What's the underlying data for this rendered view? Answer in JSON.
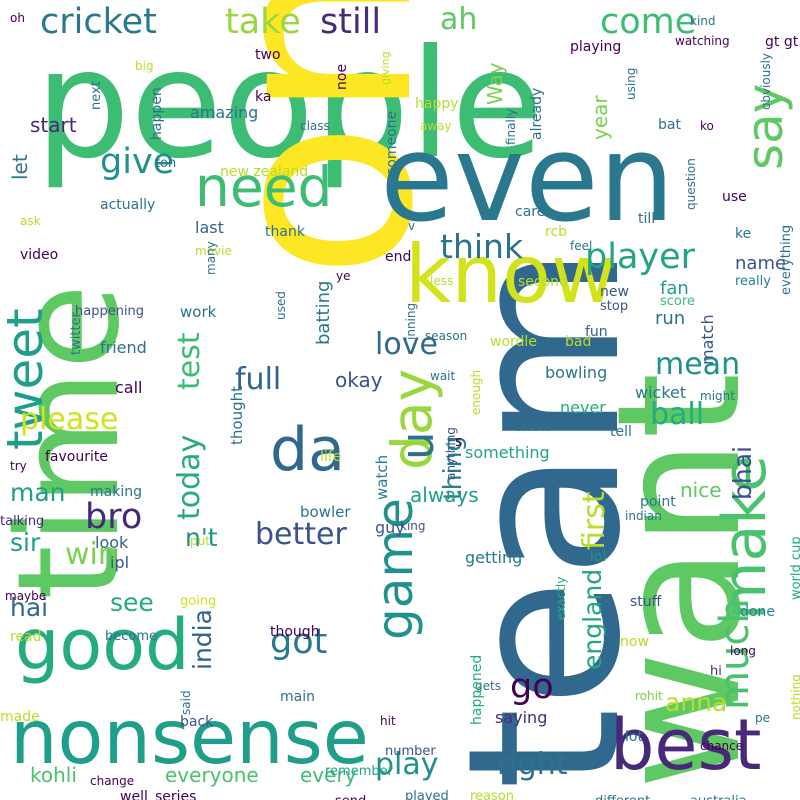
{
  "words": [
    {
      "text": "people",
      "color": "#3dbc74"
    },
    {
      "text": "one",
      "color": "#fde725"
    },
    {
      "text": "even",
      "color": "#2a788e"
    },
    {
      "text": "team",
      "color": "#31688e"
    },
    {
      "text": "want",
      "color": "#5ec962"
    },
    {
      "text": "time",
      "color": "#5ec962"
    },
    {
      "text": "know",
      "color": "#d2e21b"
    },
    {
      "text": "nonsense",
      "color": "#1f9e89"
    },
    {
      "text": "good",
      "color": "#25ab82"
    },
    {
      "text": "best",
      "color": "#482878"
    },
    {
      "text": "make",
      "color": "#4ac16d"
    },
    {
      "text": "day",
      "color": "#98d83e"
    },
    {
      "text": "need",
      "color": "#3dbc74"
    },
    {
      "text": "tweet",
      "color": "#1f9e89"
    },
    {
      "text": "game",
      "color": "#21918c"
    },
    {
      "text": "da",
      "color": "#31688e"
    },
    {
      "text": "say",
      "color": "#5ec962"
    },
    {
      "text": "much",
      "color": "#4ac16d"
    },
    {
      "text": "still",
      "color": "#472c7a"
    },
    {
      "text": "cricket",
      "color": "#2a788e"
    },
    {
      "text": "take",
      "color": "#98d83e"
    },
    {
      "text": "ah",
      "color": "#5ec962"
    },
    {
      "text": "come",
      "color": "#3dbc74"
    },
    {
      "text": "give",
      "color": "#21918c"
    },
    {
      "text": "think",
      "color": "#2c728e"
    },
    {
      "text": "player",
      "color": "#21a585"
    },
    {
      "text": "full",
      "color": "#33638d"
    },
    {
      "text": "please",
      "color": "#d2e21b"
    },
    {
      "text": "win",
      "color": "#7ad151"
    },
    {
      "text": "u",
      "color": "#2c728e"
    },
    {
      "text": "right",
      "color": "#2c728e"
    },
    {
      "text": "play",
      "color": "#21918c"
    },
    {
      "text": "today",
      "color": "#25ab82"
    },
    {
      "text": "test",
      "color": "#3dbc74"
    },
    {
      "text": "first",
      "color": "#b5de2b"
    },
    {
      "text": "got",
      "color": "#2a788e"
    },
    {
      "text": "better",
      "color": "#3b528b"
    },
    {
      "text": "bro",
      "color": "#482878"
    },
    {
      "text": "go",
      "color": "#440154"
    },
    {
      "text": "love",
      "color": "#31688e"
    },
    {
      "text": "mean",
      "color": "#21918c"
    },
    {
      "text": "ball",
      "color": "#25ab82"
    },
    {
      "text": "anna",
      "color": "#b5de2b"
    },
    {
      "text": "bhai",
      "color": "#3b528b"
    },
    {
      "text": "england",
      "color": "#21a585"
    },
    {
      "text": "india",
      "color": "#33638d"
    },
    {
      "text": "man",
      "color": "#1f9e89"
    },
    {
      "text": "sir",
      "color": "#1f9e89"
    },
    {
      "text": "see",
      "color": "#25ab82"
    },
    {
      "text": "n't",
      "color": "#20928c"
    },
    {
      "text": "thing",
      "color": "#277f8e"
    },
    {
      "text": "hai",
      "color": "#31688e"
    },
    {
      "text": "kohli",
      "color": "#4ac16d"
    },
    {
      "text": "everyone",
      "color": "#4ac16d"
    },
    {
      "text": "every",
      "color": "#3dbc74"
    },
    {
      "text": "always",
      "color": "#1f9e89"
    },
    {
      "text": "nice",
      "color": "#5ec962"
    },
    {
      "text": "okay",
      "color": "#3b528b"
    },
    {
      "text": "year",
      "color": "#7ad151"
    },
    {
      "text": "Way",
      "color": "#7ad151"
    },
    {
      "text": "start",
      "color": "#482878"
    },
    {
      "text": "let",
      "color": "#2a788e"
    },
    {
      "text": "amazing",
      "color": "#2c728e"
    },
    {
      "text": "match",
      "color": "#3b528b"
    },
    {
      "text": "batting",
      "color": "#2a788e"
    },
    {
      "text": "name",
      "color": "#3b528b"
    },
    {
      "text": "fan",
      "color": "#1f9e89"
    },
    {
      "text": "run",
      "color": "#2c728e"
    },
    {
      "text": "guy",
      "color": "#3b528b"
    },
    {
      "text": "last",
      "color": "#33638d"
    },
    {
      "text": "look",
      "color": "#33638d"
    },
    {
      "text": "ipl",
      "color": "#3b528b"
    },
    {
      "text": "saying",
      "color": "#472c7a"
    },
    {
      "text": "something",
      "color": "#21a585"
    },
    {
      "text": "never",
      "color": "#25ab82"
    },
    {
      "text": "bowling",
      "color": "#2a788e"
    },
    {
      "text": "wicket",
      "color": "#2a788e"
    },
    {
      "text": "getting",
      "color": "#2a788e"
    },
    {
      "text": "point",
      "color": "#2a788e"
    },
    {
      "text": "lol",
      "color": "#21918c"
    },
    {
      "text": "done",
      "color": "#26828e"
    },
    {
      "text": "stuff",
      "color": "#3b528b"
    },
    {
      "text": "world cup",
      "color": "#25ab82"
    },
    {
      "text": "everything",
      "color": "#2c728e"
    },
    {
      "text": "really",
      "color": "#26828e"
    },
    {
      "text": "new",
      "color": "#3b528b"
    },
    {
      "text": "fun",
      "color": "#33638d"
    },
    {
      "text": "stop",
      "color": "#3b528b"
    },
    {
      "text": "score",
      "color": "#3dbc74"
    },
    {
      "text": "call",
      "color": "#440154"
    },
    {
      "text": "friend",
      "color": "#2c728e"
    },
    {
      "text": "work",
      "color": "#2c728e"
    },
    {
      "text": "thought",
      "color": "#2c728e"
    },
    {
      "text": "watch",
      "color": "#277f8e"
    },
    {
      "text": "bowler",
      "color": "#2c728e"
    },
    {
      "text": "favourite",
      "color": "#440154"
    },
    {
      "text": "making",
      "color": "#2c728e"
    },
    {
      "text": "talking",
      "color": "#472c7a"
    },
    {
      "text": "read",
      "color": "#b5de2b"
    },
    {
      "text": "maybe",
      "color": "#440154"
    },
    {
      "text": "going",
      "color": "#d2e21b"
    },
    {
      "text": "become",
      "color": "#2c728e"
    },
    {
      "text": "made",
      "color": "#b5de2b"
    },
    {
      "text": "back",
      "color": "#3b528b"
    },
    {
      "text": "said",
      "color": "#2c728e"
    },
    {
      "text": "main",
      "color": "#2c728e"
    },
    {
      "text": "though",
      "color": "#440154"
    },
    {
      "text": "number",
      "color": "#3b528b"
    },
    {
      "text": "remember",
      "color": "#21a585"
    },
    {
      "text": "send",
      "color": "#440154"
    },
    {
      "text": "series",
      "color": "#440154"
    },
    {
      "text": "well",
      "color": "#440154"
    },
    {
      "text": "change",
      "color": "#440154"
    },
    {
      "text": "played",
      "color": "#2c728e"
    },
    {
      "text": "reason",
      "color": "#b5de2b"
    },
    {
      "text": "different",
      "color": "#2c728e"
    },
    {
      "text": "australia",
      "color": "#2c728e"
    },
    {
      "text": "nothing",
      "color": "#b5de2b"
    },
    {
      "text": "rohit",
      "color": "#7ad151"
    },
    {
      "text": "chance",
      "color": "#440154"
    },
    {
      "text": "lot",
      "color": "#2c728e"
    },
    {
      "text": "hi",
      "color": "#472c7a"
    },
    {
      "text": "long",
      "color": "#440154"
    },
    {
      "text": "now",
      "color": "#b5de2b"
    },
    {
      "text": "saw",
      "color": "#33638d"
    },
    {
      "text": "gets",
      "color": "#2c728e"
    },
    {
      "text": "happened",
      "color": "#25ab82"
    },
    {
      "text": "exactly",
      "color": "#25ab82"
    },
    {
      "text": "hit",
      "color": "#440154"
    },
    {
      "text": "pe",
      "color": "#2c728e"
    },
    {
      "text": "king",
      "color": "#3b528b"
    },
    {
      "text": "indian",
      "color": "#2c728e"
    },
    {
      "text": "put",
      "color": "#b5de2b"
    },
    {
      "text": "life",
      "color": "#b5de2b"
    },
    {
      "text": "try",
      "color": "#440154"
    },
    {
      "text": "anything",
      "color": "#3b528b"
    },
    {
      "text": "enough",
      "color": "#b5de2b"
    },
    {
      "text": "tell",
      "color": "#2c728e"
    },
    {
      "text": "might",
      "color": "#2c728e"
    },
    {
      "text": "show",
      "color": "#2c728e"
    },
    {
      "text": "s",
      "color": "#440154"
    },
    {
      "text": "wait",
      "color": "#2c728e"
    },
    {
      "text": "season",
      "color": "#2c728e"
    },
    {
      "text": "bad",
      "color": "#b5de2b"
    },
    {
      "text": "wordle",
      "color": "#b5de2b"
    },
    {
      "text": "inning",
      "color": "#2c728e"
    },
    {
      "text": "used",
      "color": "#2c728e"
    },
    {
      "text": "twitter",
      "color": "#2c728e"
    },
    {
      "text": "happening",
      "color": "#3b528b"
    },
    {
      "text": "ye",
      "color": "#440154"
    },
    {
      "text": "end",
      "color": "#440154"
    },
    {
      "text": "less",
      "color": "#b5de2b"
    },
    {
      "text": "second",
      "color": "#b5de2b"
    },
    {
      "text": "feel",
      "color": "#2c728e"
    },
    {
      "text": "rcb",
      "color": "#b5de2b"
    },
    {
      "text": "care",
      "color": "#2c728e"
    },
    {
      "text": "v",
      "color": "#2c728e"
    },
    {
      "text": "thank",
      "color": "#2c728e"
    },
    {
      "text": "video",
      "color": "#440154"
    },
    {
      "text": "movie",
      "color": "#b5de2b"
    },
    {
      "text": "many",
      "color": "#2c728e"
    },
    {
      "text": "ask",
      "color": "#b5de2b"
    },
    {
      "text": "actually",
      "color": "#2c728e"
    },
    {
      "text": "new zealand",
      "color": "#b5de2b"
    },
    {
      "text": "toh",
      "color": "#2c728e"
    },
    {
      "text": "happen",
      "color": "#2c728e"
    },
    {
      "text": "class",
      "color": "#2c728e"
    },
    {
      "text": "someone",
      "color": "#2c728e"
    },
    {
      "text": "noe",
      "color": "#440154"
    },
    {
      "text": "ka",
      "color": "#440154"
    },
    {
      "text": "two",
      "color": "#440154"
    },
    {
      "text": "next",
      "color": "#2c728e"
    },
    {
      "text": "big",
      "color": "#b5de2b"
    },
    {
      "text": "oh",
      "color": "#440154"
    },
    {
      "text": "giving",
      "color": "#b5de2b"
    },
    {
      "text": "happy",
      "color": "#b5de2b"
    },
    {
      "text": "away",
      "color": "#b5de2b"
    },
    {
      "text": "finally",
      "color": "#2c728e"
    },
    {
      "text": "already",
      "color": "#2c728e"
    },
    {
      "text": "playing",
      "color": "#440154"
    },
    {
      "text": "using",
      "color": "#2c728e"
    },
    {
      "text": "watching",
      "color": "#440154"
    },
    {
      "text": "kind",
      "color": "#2c728e"
    },
    {
      "text": "gt gt",
      "color": "#440154"
    },
    {
      "text": "obviously",
      "color": "#2c728e"
    },
    {
      "text": "bat",
      "color": "#2c728e"
    },
    {
      "text": "ko",
      "color": "#440154"
    },
    {
      "text": "question",
      "color": "#2c728e"
    },
    {
      "text": "till",
      "color": "#2c728e"
    },
    {
      "text": "use",
      "color": "#440154"
    },
    {
      "text": "ke",
      "color": "#2c728e"
    }
  ]
}
